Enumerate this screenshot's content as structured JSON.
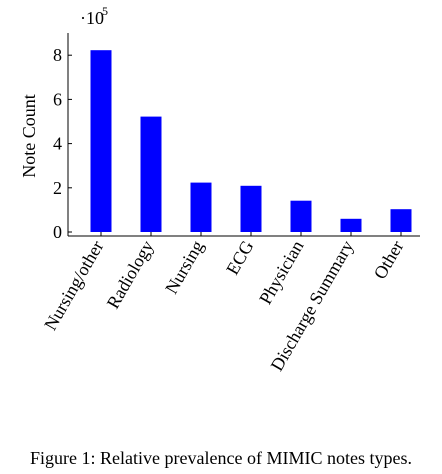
{
  "chart_data": {
    "type": "bar",
    "categories": [
      "Nursing/other",
      "Radiology",
      "Nursing",
      "ECG",
      "Physician",
      "Discharge Summary",
      "Other"
    ],
    "values": [
      822497,
      522279,
      223556,
      209051,
      141624,
      59652,
      103372
    ],
    "ylabel": "Note Count",
    "xlabel": "",
    "ylim": [
      0,
      900000
    ],
    "yticks": [
      0,
      2,
      4,
      6,
      8
    ],
    "ytick_labels": [
      "0",
      "2",
      "4",
      "6",
      "8"
    ],
    "scale_base": "·10",
    "scale_exponent": "5",
    "grid": false,
    "bar_color": "#0000ff"
  },
  "caption": "Figure 1: Relative prevalence of MIMIC notes types."
}
